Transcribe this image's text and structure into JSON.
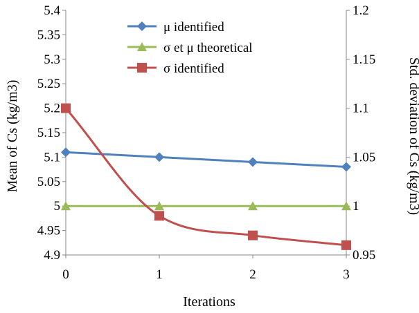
{
  "chart_data": {
    "type": "line",
    "x": [
      0,
      1,
      2,
      3
    ],
    "xlabel": "Iterations",
    "x_ticks": [
      "0",
      "1",
      "2",
      "3"
    ],
    "y_left": {
      "label": "Mean of Cs (kg/m3)",
      "lim": [
        4.9,
        5.4
      ],
      "ticks": [
        "4.9",
        "4.95",
        "5",
        "5.05",
        "5.1",
        "5.15",
        "5.2",
        "5.25",
        "5.3",
        "5.35",
        "5.4"
      ]
    },
    "y_right": {
      "label": "Std. deviation of Cs (kg/m3)",
      "lim": [
        0.95,
        1.2
      ],
      "ticks": [
        "0.95",
        "1",
        "1.05",
        "1.1",
        "1.15",
        "1.2"
      ]
    },
    "series": [
      {
        "name": "μ identified",
        "axis": "left",
        "values": [
          5.11,
          5.1,
          5.09,
          5.08
        ],
        "color": "#4f81bd",
        "marker": "diamond",
        "smooth": false
      },
      {
        "name": "σ et μ theoretical",
        "axis": "left",
        "values": [
          5.0,
          5.0,
          5.0,
          5.0
        ],
        "color": "#9bbb59",
        "marker": "triangle",
        "smooth": false
      },
      {
        "name": "σ identified",
        "axis": "right",
        "values": [
          1.1,
          0.99,
          0.97,
          0.96
        ],
        "color": "#c0504d",
        "marker": "square",
        "smooth": true
      }
    ],
    "grid": false,
    "legend_position": "top-center"
  }
}
